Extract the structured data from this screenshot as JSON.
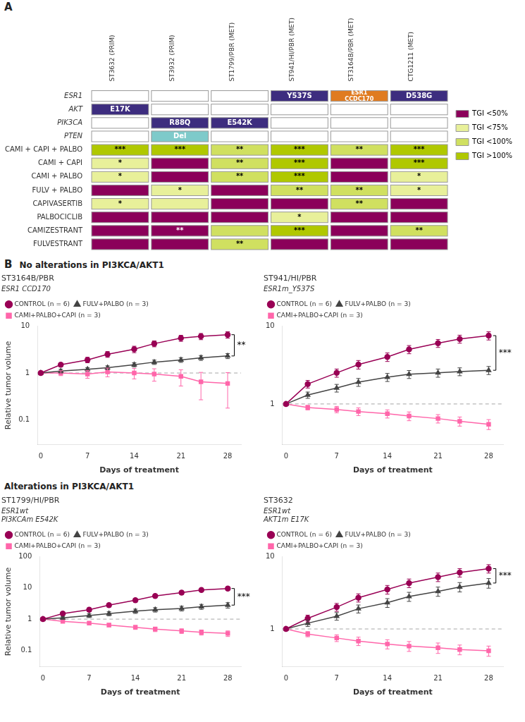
{
  "chart_data": [
    {
      "type": "heatmap",
      "annotations": [
        {
          "text": "A"
        }
      ],
      "categories": [
        "ST3632 (PRIM)",
        "ST3932 (PRIM)",
        "ST1799/PBR (MET)",
        "ST941/HI/PBR (MET)",
        "ST3164B/PBR (MET)",
        "CTG1211 (MET)"
      ],
      "genes": [
        "ESR1",
        "AKT",
        "PIK3CA",
        "PTEN"
      ],
      "gene_annotations": [
        [
          null,
          null,
          null,
          "Y537S",
          "ESR1\nCCDC170",
          "D538G"
        ],
        [
          "E17K",
          null,
          null,
          null,
          null,
          null
        ],
        [
          null,
          "R88Q",
          "E542K",
          null,
          null,
          null
        ],
        [
          null,
          "Del",
          null,
          null,
          null,
          null
        ]
      ],
      "gene_ann_colors": {
        "Y537S": "#3d2d7f",
        "ESR1\nCCDC170": "#e07b20",
        "D538G": "#3d2d7f",
        "E17K": "#3d2d7f",
        "R88Q": "#3d2d7f",
        "E542K": "#3d2d7f",
        "Del": "#7ecaca"
      },
      "treatments": [
        "CAMI + CAPI + PALBO",
        "CAMI + CAPI",
        "CAMI + PALBO",
        "FULV + PALBO",
        "CAPIVASERTIB",
        "PALBOCICLIB",
        "CAMIZESTRANT",
        "FULVESTRANT"
      ],
      "levels": [
        {
          "name": "TGI <50%",
          "color": "#8b005a"
        },
        {
          "name": "TGI <75%",
          "color": "#e8f09a"
        },
        {
          "name": "TGI <100%",
          "color": "#d0e060"
        },
        {
          "name": "TGI >100%",
          "color": "#b0c800"
        }
      ],
      "cells": [
        [
          "TGI >100%",
          "TGI >100%",
          "TGI <100%",
          "TGI >100%",
          "TGI <100%",
          "TGI >100%"
        ],
        [
          "TGI <75%",
          "TGI <50%",
          "TGI <100%",
          "TGI >100%",
          "TGI <50%",
          "TGI >100%"
        ],
        [
          "TGI <75%",
          "TGI <50%",
          "TGI <100%",
          "TGI >100%",
          "TGI <50%",
          "TGI <75%"
        ],
        [
          "TGI <50%",
          "TGI <75%",
          "TGI <50%",
          "TGI <100%",
          "TGI <100%",
          "TGI <75%"
        ],
        [
          "TGI <75%",
          "TGI <75%",
          "TGI <50%",
          "TGI <50%",
          "TGI <100%",
          "TGI <50%"
        ],
        [
          "TGI <50%",
          "TGI <50%",
          "TGI <50%",
          "TGI <75%",
          "TGI <50%",
          "TGI <50%"
        ],
        [
          "TGI <50%",
          "TGI <50%",
          "TGI <100%",
          "TGI >100%",
          "TGI <50%",
          "TGI <100%"
        ],
        [
          "TGI <50%",
          "TGI <50%",
          "TGI <100%",
          "TGI <50%",
          "TGI <50%",
          "TGI <50%"
        ]
      ],
      "cell_labels": [
        [
          "***",
          "***",
          "**",
          "***",
          "**",
          "***"
        ],
        [
          "*",
          null,
          "**",
          "***",
          null,
          "***"
        ],
        [
          "*",
          null,
          "**",
          "***",
          null,
          "*"
        ],
        [
          null,
          "*",
          null,
          "**",
          "**",
          "*"
        ],
        [
          "*",
          null,
          null,
          null,
          "**",
          null
        ],
        [
          null,
          null,
          null,
          "*",
          null,
          null
        ],
        [
          null,
          "**",
          null,
          "***",
          null,
          "**"
        ],
        [
          null,
          null,
          "**",
          null,
          null,
          null
        ]
      ],
      "legend": "right"
    },
    {
      "type": "line",
      "annotations": [
        {
          "text": "B"
        },
        {
          "text": "No alterations in PI3KCA/AKT1"
        },
        {
          "type": "hline",
          "y": 1,
          "line_style": "dashed"
        },
        {
          "type": "bracket",
          "text": "**",
          "x": 29,
          "y": [
            2.3,
            6.5
          ]
        }
      ],
      "title": "ST3164B/PBR",
      "subtitle": [
        "ESR1 CCD170"
      ],
      "xlabel": "Days of treatment",
      "ylabel": "Relative tumor volume",
      "x": [
        0,
        3,
        7,
        10,
        14,
        17,
        21,
        24,
        28
      ],
      "xlim": [
        -0.5,
        30
      ],
      "xticks": [
        0,
        7,
        14,
        21,
        28
      ],
      "ylim": [
        0.03,
        10
      ],
      "yticks": [
        0.1,
        1,
        10
      ],
      "log": "y",
      "grid": false,
      "legend": "upper left",
      "series": [
        {
          "name": "CONTROL (n = 6)",
          "color": "#990055",
          "marker": "circle",
          "values": [
            1.0,
            1.5,
            1.9,
            2.5,
            3.2,
            4.2,
            5.5,
            6.0,
            6.5
          ],
          "errors": [
            0.0,
            0.15,
            0.25,
            0.35,
            0.5,
            0.6,
            0.8,
            0.9,
            1.0
          ]
        },
        {
          "name": "FULV+PALBO (n = 3)",
          "color": "#444444",
          "marker": "triangle",
          "values": [
            1.0,
            1.1,
            1.2,
            1.3,
            1.5,
            1.7,
            1.9,
            2.1,
            2.3
          ],
          "errors": [
            0.0,
            0.1,
            0.1,
            0.12,
            0.15,
            0.18,
            0.22,
            0.25,
            0.28
          ]
        },
        {
          "name": "CAMI+PALBO+CAPI (n = 3)",
          "color": "#ff66aa",
          "marker": "square",
          "values": [
            1.0,
            1.0,
            0.95,
            1.05,
            1.0,
            0.95,
            0.85,
            0.65,
            0.6
          ],
          "errors": [
            0.0,
            0.12,
            0.18,
            0.22,
            0.25,
            0.28,
            0.32,
            0.38,
            0.42
          ]
        }
      ]
    },
    {
      "type": "line",
      "annotations": [
        {
          "type": "hline",
          "y": 1,
          "line_style": "dashed"
        },
        {
          "type": "bracket",
          "text": "***",
          "x": 29,
          "y": [
            2.7,
            7.5
          ]
        }
      ],
      "title": "ST941/HI/PBR",
      "subtitle": [
        "ESR1m_Y537S"
      ],
      "xlabel": "Days of treatment",
      "x": [
        0,
        3,
        7,
        10,
        14,
        17,
        21,
        24,
        28
      ],
      "xlim": [
        -0.5,
        30
      ],
      "xticks": [
        0,
        7,
        14,
        21,
        28
      ],
      "ylim": [
        0.3,
        10
      ],
      "yticks": [
        1,
        10
      ],
      "log": "y",
      "grid": false,
      "legend": "upper left",
      "series": [
        {
          "name": "CONTROL (n = 6)",
          "color": "#990055",
          "marker": "circle",
          "values": [
            1.0,
            1.8,
            2.5,
            3.2,
            4.0,
            5.0,
            6.0,
            6.8,
            7.5
          ],
          "errors": [
            0.0,
            0.2,
            0.3,
            0.4,
            0.5,
            0.6,
            0.7,
            0.8,
            0.9
          ]
        },
        {
          "name": "FULV+PALBO (n = 3)",
          "color": "#444444",
          "marker": "triangle",
          "values": [
            1.0,
            1.3,
            1.6,
            1.9,
            2.2,
            2.4,
            2.5,
            2.6,
            2.7
          ],
          "errors": [
            0.0,
            0.12,
            0.18,
            0.22,
            0.26,
            0.28,
            0.3,
            0.3,
            0.32
          ]
        },
        {
          "name": "CAMI+PALBO+CAPI (n = 3)",
          "color": "#ff66aa",
          "marker": "square",
          "values": [
            1.0,
            0.9,
            0.85,
            0.8,
            0.75,
            0.7,
            0.65,
            0.6,
            0.55
          ],
          "errors": [
            0.0,
            0.06,
            0.08,
            0.09,
            0.09,
            0.09,
            0.08,
            0.08,
            0.08
          ]
        }
      ]
    },
    {
      "type": "line",
      "annotations": [
        {
          "text": "Alterations in PI3KCA/AKT1"
        },
        {
          "type": "hline",
          "y": 1,
          "line_style": "dashed"
        },
        {
          "type": "bracket",
          "text": "***",
          "x": 29,
          "y": [
            2.8,
            9.5
          ]
        }
      ],
      "title": "ST1799/HI/PBR",
      "subtitle": [
        "ESR1wt",
        "PI3KCAm E542K"
      ],
      "xlabel": "Days of treatment",
      "ylabel": "Relative tumor volume",
      "x": [
        0,
        3,
        7,
        10,
        14,
        17,
        21,
        24,
        28
      ],
      "xlim": [
        -0.5,
        30
      ],
      "xticks": [
        0,
        7,
        14,
        21,
        28
      ],
      "ylim": [
        0.03,
        100
      ],
      "yticks": [
        0.1,
        1,
        10,
        100
      ],
      "log": "y",
      "grid": false,
      "legend": "upper left",
      "series": [
        {
          "name": "CONTROL (n = 6)",
          "color": "#990055",
          "marker": "circle",
          "values": [
            1.0,
            1.5,
            2.0,
            2.8,
            4.0,
            5.5,
            7.0,
            8.5,
            9.5
          ],
          "errors": [
            0.0,
            0.18,
            0.28,
            0.38,
            0.55,
            0.72,
            0.9,
            1.1,
            1.25
          ]
        },
        {
          "name": "FULV+PALBO (n = 3)",
          "color": "#444444",
          "marker": "triangle",
          "values": [
            1.0,
            1.1,
            1.3,
            1.5,
            1.8,
            2.0,
            2.2,
            2.5,
            2.8
          ],
          "errors": [
            0.0,
            0.12,
            0.18,
            0.22,
            0.28,
            0.32,
            0.38,
            0.45,
            0.55
          ]
        },
        {
          "name": "CAMI+PALBO+CAPI (n = 3)",
          "color": "#ff66aa",
          "marker": "square",
          "values": [
            1.0,
            0.85,
            0.75,
            0.65,
            0.55,
            0.48,
            0.42,
            0.38,
            0.35
          ],
          "errors": [
            0.0,
            0.07,
            0.08,
            0.08,
            0.08,
            0.08,
            0.07,
            0.07,
            0.07
          ]
        }
      ]
    },
    {
      "type": "line",
      "annotations": [
        {
          "type": "hline",
          "y": 1,
          "line_style": "dashed"
        },
        {
          "type": "bracket",
          "text": "***",
          "x": 29,
          "y": [
            4.3,
            6.8
          ]
        }
      ],
      "title": "ST3632",
      "subtitle": [
        "ESR1wt",
        "AKT1m E17K"
      ],
      "xlabel": "Days of treatment",
      "x": [
        0,
        3,
        7,
        10,
        14,
        17,
        21,
        24,
        28
      ],
      "xlim": [
        -0.5,
        30
      ],
      "xticks": [
        0,
        7,
        14,
        21,
        28
      ],
      "ylim": [
        0.3,
        10
      ],
      "yticks": [
        1,
        10
      ],
      "log": "y",
      "grid": false,
      "legend": "upper left",
      "series": [
        {
          "name": "CONTROL (n = 6)",
          "color": "#990055",
          "marker": "circle",
          "values": [
            1.0,
            1.4,
            2.0,
            2.7,
            3.5,
            4.3,
            5.2,
            6.0,
            6.8
          ],
          "errors": [
            0.0,
            0.15,
            0.25,
            0.35,
            0.48,
            0.58,
            0.7,
            0.8,
            0.9
          ]
        },
        {
          "name": "FULV+PALBO (n = 3)",
          "color": "#444444",
          "marker": "triangle",
          "values": [
            1.0,
            1.2,
            1.5,
            1.9,
            2.3,
            2.8,
            3.3,
            3.8,
            4.3
          ],
          "errors": [
            0.0,
            0.12,
            0.18,
            0.24,
            0.32,
            0.4,
            0.48,
            0.56,
            0.65
          ]
        },
        {
          "name": "CAMI+PALBO+CAPI (n = 3)",
          "color": "#ff66aa",
          "marker": "square",
          "values": [
            1.0,
            0.85,
            0.75,
            0.68,
            0.62,
            0.58,
            0.55,
            0.52,
            0.5
          ],
          "errors": [
            0.0,
            0.07,
            0.08,
            0.09,
            0.09,
            0.09,
            0.09,
            0.08,
            0.08
          ]
        }
      ]
    }
  ]
}
